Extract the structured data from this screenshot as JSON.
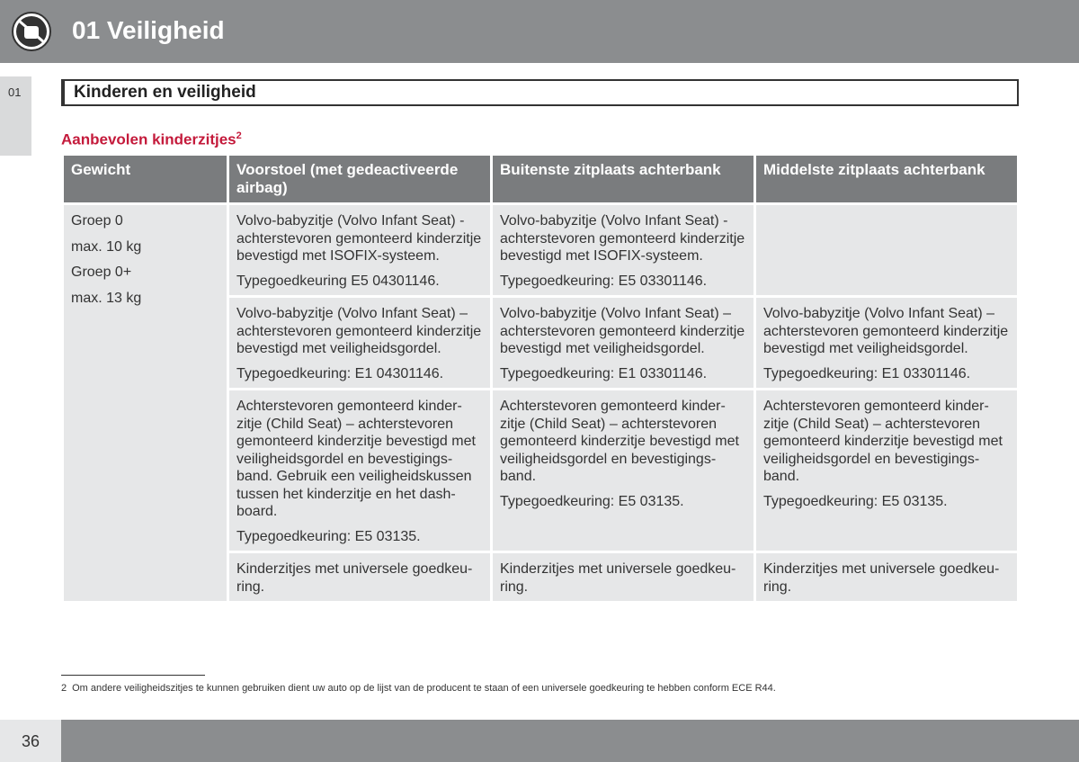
{
  "header": {
    "section": "01 Veiligheid",
    "tab": "01"
  },
  "heading": "Kinderen en veiligheid",
  "subtitle": {
    "text": "Aanbevolen kinderzitjes",
    "note": "2"
  },
  "table": {
    "columns": [
      "Gewicht",
      "Voorstoel (met gedeactiveerde airbag)",
      "Buitenste zitplaats achterbank",
      "Middelste zitplaats achterbank"
    ],
    "weight": [
      [
        "Groep 0"
      ],
      [
        "max. 10 kg"
      ],
      [
        "Groep 0+"
      ],
      [
        "max. 13 kg"
      ]
    ],
    "rows": [
      [
        [
          [
            "Volvo-babyzitje (Volvo Infant Seat) -",
            "achterstevoren gemonteerd kinderzitje",
            "bevestigd met ISOFIX-systeem."
          ],
          [
            "Typegoedkeuring E5 04301146."
          ]
        ],
        [
          [
            "Volvo-babyzitje (Volvo Infant Seat) -",
            "achterstevoren gemonteerd kinderzitje",
            "bevestigd met ISOFIX-systeem."
          ],
          [
            "Typegoedkeuring: E5 03301146."
          ]
        ],
        []
      ],
      [
        [
          [
            "Volvo-babyzitje (Volvo Infant Seat) –",
            "achterstevoren gemonteerd kinderzitje",
            "bevestigd met veiligheidsgordel."
          ],
          [
            "Typegoedkeuring: E1 04301146."
          ]
        ],
        [
          [
            "Volvo-babyzitje (Volvo Infant Seat) –",
            "achterstevoren gemonteerd kinderzitje",
            "bevestigd met veiligheidsgordel."
          ],
          [
            "Typegoedkeuring: E1 03301146."
          ]
        ],
        [
          [
            "Volvo-babyzitje (Volvo Infant Seat) –",
            "achterstevoren gemonteerd kinderzitje",
            "bevestigd met veiligheidsgordel."
          ],
          [
            "Typegoedkeuring: E1 03301146."
          ]
        ]
      ],
      [
        [
          [
            "Achterstevoren gemonteerd kinder-",
            "zitje (Child Seat) – achterstevoren",
            "gemonteerd kinderzitje bevestigd met",
            "veiligheidsgordel en bevestigings-",
            "band. Gebruik een veiligheidskussen",
            "tussen het kinderzitje en het dash-",
            "board."
          ],
          [
            "Typegoedkeuring: E5 03135."
          ]
        ],
        [
          [
            "Achterstevoren gemonteerd kinder-",
            "zitje (Child Seat) – achterstevoren",
            "gemonteerd kinderzitje bevestigd met",
            "veiligheidsgordel en bevestigings-",
            "band."
          ],
          [
            "Typegoedkeuring: E5 03135."
          ]
        ],
        [
          [
            "Achterstevoren gemonteerd kinder-",
            "zitje (Child Seat) – achterstevoren",
            "gemonteerd kinderzitje bevestigd met",
            "veiligheidsgordel en bevestigings-",
            "band."
          ],
          [
            "Typegoedkeuring: E5 03135."
          ]
        ]
      ],
      [
        [
          [
            "Kinderzitjes met universele goedkeu-",
            "ring."
          ]
        ],
        [
          [
            "Kinderzitjes met universele goedkeu-",
            "ring."
          ]
        ],
        [
          [
            "Kinderzitjes met universele goedkeu-",
            "ring."
          ]
        ]
      ]
    ]
  },
  "footnote": {
    "mark": "2",
    "text": "Om andere veiligheidszitjes te kunnen gebruiken dient uw auto op de lijst van de producent te staan of een universele goedkeuring te hebben conform ECE R44."
  },
  "page_number": "36"
}
